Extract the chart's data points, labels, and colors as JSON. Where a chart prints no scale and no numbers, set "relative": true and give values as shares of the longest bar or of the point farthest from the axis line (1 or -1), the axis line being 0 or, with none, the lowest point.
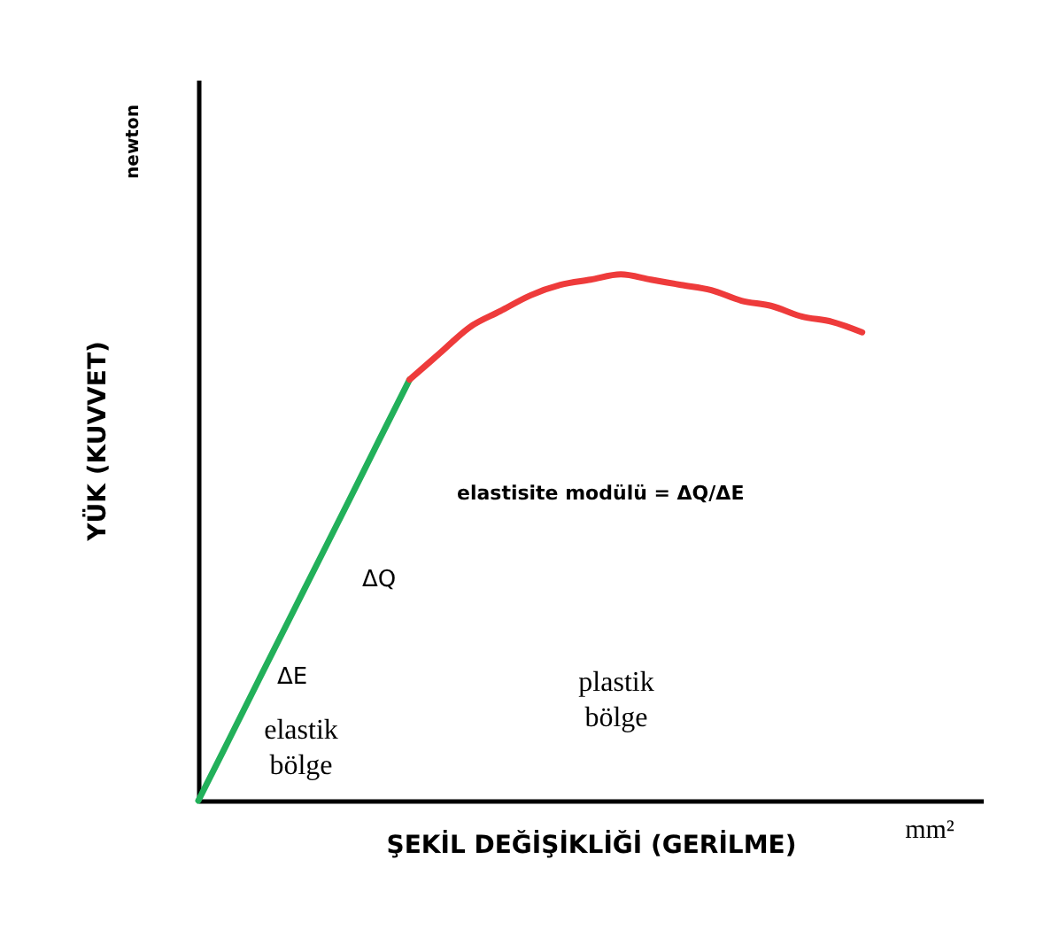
{
  "chart_data": {
    "type": "line",
    "relative": true,
    "xlabel": "ŞEKİL DEĞİŞİKLİĞİ (GERİLME)",
    "ylabel": "YÜK (KUVVET)",
    "annotations": [
      "newton",
      "mm²",
      "ΔE",
      "ΔQ",
      "elastisite modülü = ΔQ/ΔE",
      "elastik\nbölge",
      "plastik\nbölge"
    ],
    "categories": [
      null,
      null,
      null,
      null,
      null,
      null,
      null,
      null,
      null,
      null,
      null,
      null,
      null,
      null,
      null,
      null,
      null,
      null,
      null,
      null,
      null,
      null,
      null,
      null,
      null,
      null,
      null
    ],
    "series": [
      {
        "color": "#22b05a",
        "values": [
          0,
          0.114,
          0.229,
          0.343,
          0.457,
          0.571,
          0.686,
          0.8,
          null,
          null,
          null,
          null,
          null,
          null,
          null,
          null,
          null,
          null,
          null,
          null,
          null,
          null,
          null,
          null,
          null,
          null,
          null
        ]
      },
      {
        "color": "#ee3b3b",
        "values": [
          null,
          null,
          null,
          null,
          null,
          null,
          null,
          0.8,
          0.85,
          0.9,
          0.93,
          0.96,
          0.98,
          0.99,
          1.0,
          0.99,
          0.98,
          0.97,
          0.95,
          0.94,
          0.92,
          0.91,
          0.89,
          null,
          null,
          null,
          null
        ]
      }
    ],
    "legend": false,
    "grid": false,
    "marker": "none",
    "line_style": "solid"
  }
}
